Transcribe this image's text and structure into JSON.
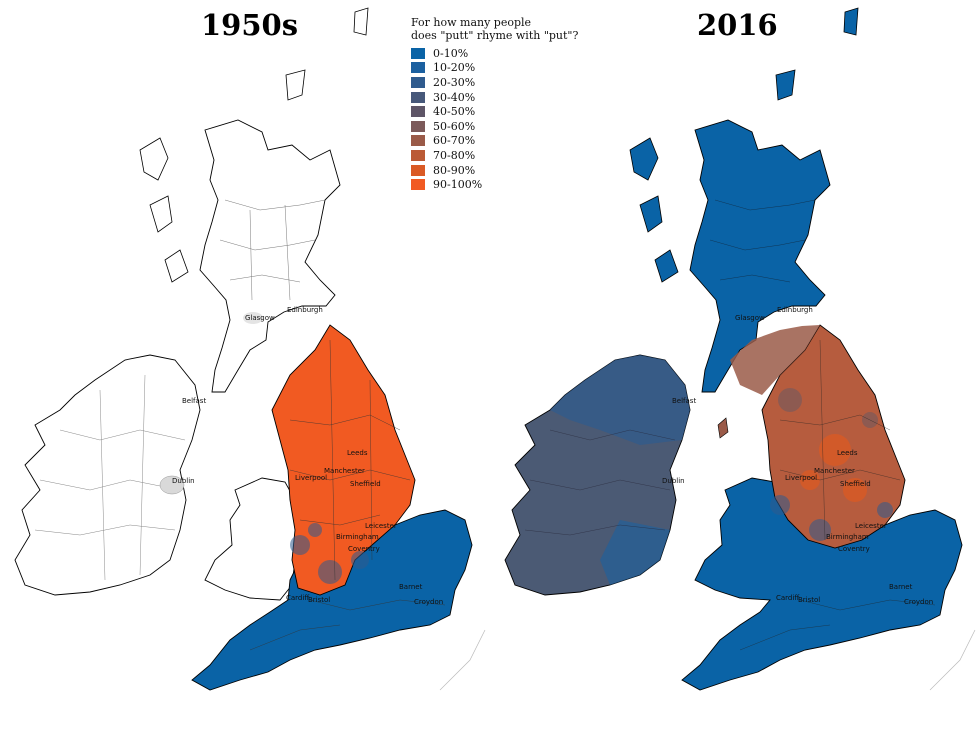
{
  "maps": [
    {
      "title": "1950s"
    },
    {
      "title": "2016"
    }
  ],
  "legend": {
    "title_line1": "For how many people",
    "title_line2": "does \"putt\" rhyme with \"put\"?",
    "entries": [
      {
        "label": "0-10%",
        "color": "#0a63a6"
      },
      {
        "label": "10-20%",
        "color": "#1b60a0"
      },
      {
        "label": "20-30%",
        "color": "#2f5b8e"
      },
      {
        "label": "30-40%",
        "color": "#47587a"
      },
      {
        "label": "40-50%",
        "color": "#5e5567"
      },
      {
        "label": "50-60%",
        "color": "#7c5a5a"
      },
      {
        "label": "60-70%",
        "color": "#9a5a48"
      },
      {
        "label": "70-80%",
        "color": "#bb5a35"
      },
      {
        "label": "80-90%",
        "color": "#da5a25"
      },
      {
        "label": "90-100%",
        "color": "#f15a22"
      }
    ]
  },
  "cities": {
    "glasgow": "Glasgow",
    "edinburgh": "Edinburgh",
    "belfast": "Belfast",
    "dublin": "Dublin",
    "leeds": "Leeds",
    "manchester": "Manchester",
    "liverpool": "Liverpool",
    "sheffield": "Sheffield",
    "leicester": "Leicester",
    "birmingham": "Birmingham",
    "coventry": "Coventry",
    "bristol": "Bristol",
    "cardiff": "Cardiff",
    "barnet": "Barnet",
    "croydon": "Croydon"
  },
  "colors": {
    "blue": "#0a63a6",
    "orange": "#f15a22",
    "ireland_2016": "#4b5a74",
    "north_2016": "#b65c3e"
  }
}
